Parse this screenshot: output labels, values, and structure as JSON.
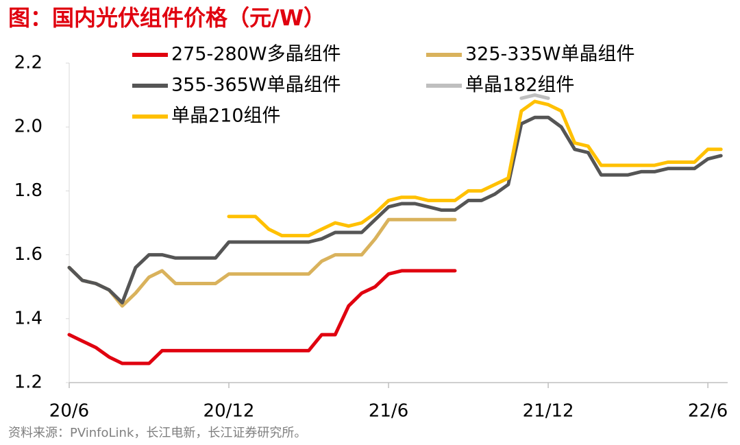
{
  "chart_data": {
    "type": "line",
    "title": "图：国内光伏组件价格（元/W）",
    "source": "资料来源：PVinfoLink，长江电新，长江证券研究所。",
    "x": [
      2020.417,
      2020.458,
      2020.5,
      2020.542,
      2020.583,
      2020.625,
      2020.667,
      2020.708,
      2020.75,
      2020.792,
      2020.833,
      2020.875,
      2020.917,
      2020.958,
      2021,
      2021.042,
      2021.083,
      2021.125,
      2021.167,
      2021.208,
      2021.25,
      2021.292,
      2021.333,
      2021.375,
      2021.417,
      2021.458,
      2021.5,
      2021.542,
      2021.583,
      2021.625,
      2021.667,
      2021.708,
      2021.75,
      2021.792,
      2021.833,
      2021.875,
      2021.917,
      2021.958,
      2022,
      2022.042,
      2022.083,
      2022.125,
      2022.167,
      2022.208,
      2022.25,
      2022.292,
      2022.333,
      2022.375,
      2022.417,
      2022.458
    ],
    "series": [
      {
        "name": "275-280W多晶组件",
        "color": "#e0000f",
        "values": [
          1.35,
          1.33,
          1.31,
          1.28,
          1.26,
          1.26,
          1.26,
          1.3,
          1.3,
          1.3,
          1.3,
          1.3,
          1.3,
          1.3,
          1.3,
          1.3,
          1.3,
          1.3,
          1.3,
          1.35,
          1.35,
          1.44,
          1.48,
          1.5,
          1.54,
          1.55,
          1.55,
          1.55,
          1.55,
          1.55,
          null,
          null,
          null,
          null,
          null,
          null,
          null,
          null,
          null,
          null,
          null,
          null,
          null,
          null,
          null,
          null,
          null,
          null,
          null,
          null
        ]
      },
      {
        "name": "325-335W单晶组件",
        "color": "#d9b25c",
        "values": [
          1.56,
          1.52,
          1.51,
          1.49,
          1.44,
          1.48,
          1.53,
          1.55,
          1.51,
          1.51,
          1.51,
          1.51,
          1.54,
          1.54,
          1.54,
          1.54,
          1.54,
          1.54,
          1.54,
          1.58,
          1.6,
          1.6,
          1.6,
          1.65,
          1.71,
          1.71,
          1.71,
          1.71,
          1.71,
          1.71,
          null,
          null,
          null,
          null,
          null,
          null,
          null,
          null,
          null,
          null,
          null,
          null,
          null,
          null,
          null,
          null,
          null,
          null,
          null,
          null
        ]
      },
      {
        "name": "355-365W单晶组件",
        "color": "#555555",
        "values": [
          1.56,
          1.52,
          1.51,
          1.49,
          1.45,
          1.56,
          1.6,
          1.6,
          1.59,
          1.59,
          1.59,
          1.59,
          1.64,
          1.64,
          1.64,
          1.64,
          1.64,
          1.64,
          1.64,
          1.65,
          1.67,
          1.67,
          1.67,
          1.71,
          1.75,
          1.76,
          1.76,
          1.75,
          1.74,
          1.74,
          1.77,
          1.77,
          1.79,
          1.82,
          2.01,
          2.03,
          2.03,
          2.0,
          1.93,
          1.92,
          1.85,
          1.85,
          1.85,
          1.86,
          1.86,
          1.87,
          1.87,
          1.87,
          1.9,
          1.91
        ]
      },
      {
        "name": "单晶182组件",
        "color": "#bfbfbf",
        "values": [
          null,
          null,
          null,
          null,
          null,
          null,
          null,
          null,
          null,
          null,
          null,
          null,
          null,
          null,
          null,
          null,
          null,
          null,
          null,
          null,
          null,
          null,
          null,
          null,
          null,
          null,
          null,
          null,
          null,
          null,
          null,
          null,
          null,
          null,
          2.09,
          2.1,
          2.09,
          null,
          null,
          null,
          null,
          null,
          null,
          null,
          null,
          null,
          null,
          null,
          null,
          null
        ]
      },
      {
        "name": "单晶210组件",
        "color": "#ffc000",
        "values": [
          null,
          null,
          null,
          null,
          null,
          null,
          null,
          null,
          null,
          null,
          null,
          null,
          1.72,
          1.72,
          1.72,
          1.68,
          1.66,
          1.66,
          1.66,
          1.68,
          1.7,
          1.69,
          1.7,
          1.73,
          1.77,
          1.78,
          1.78,
          1.77,
          1.77,
          1.77,
          1.8,
          1.8,
          1.82,
          1.84,
          2.05,
          2.08,
          2.07,
          2.05,
          1.95,
          1.94,
          1.88,
          1.88,
          1.88,
          1.88,
          1.88,
          1.89,
          1.89,
          1.89,
          1.93,
          1.93
        ]
      }
    ],
    "xlim": [
      2020.417,
      2022.479
    ],
    "xticks": [
      {
        "value": 2020.417,
        "label": "20/6"
      },
      {
        "value": 2020.917,
        "label": "20/12"
      },
      {
        "value": 2021.417,
        "label": "21/6"
      },
      {
        "value": 2021.917,
        "label": "21/12"
      },
      {
        "value": 2022.417,
        "label": "22/6"
      }
    ],
    "ylim": [
      1.2,
      2.2
    ],
    "yticks": [
      {
        "value": 1.2,
        "label": "1.2"
      },
      {
        "value": 1.4,
        "label": "1.4"
      },
      {
        "value": 1.6,
        "label": "1.6"
      },
      {
        "value": 1.8,
        "label": "1.8"
      },
      {
        "value": 2.0,
        "label": "2.0"
      },
      {
        "value": 2.2,
        "label": "2.2"
      }
    ],
    "grid": false
  }
}
